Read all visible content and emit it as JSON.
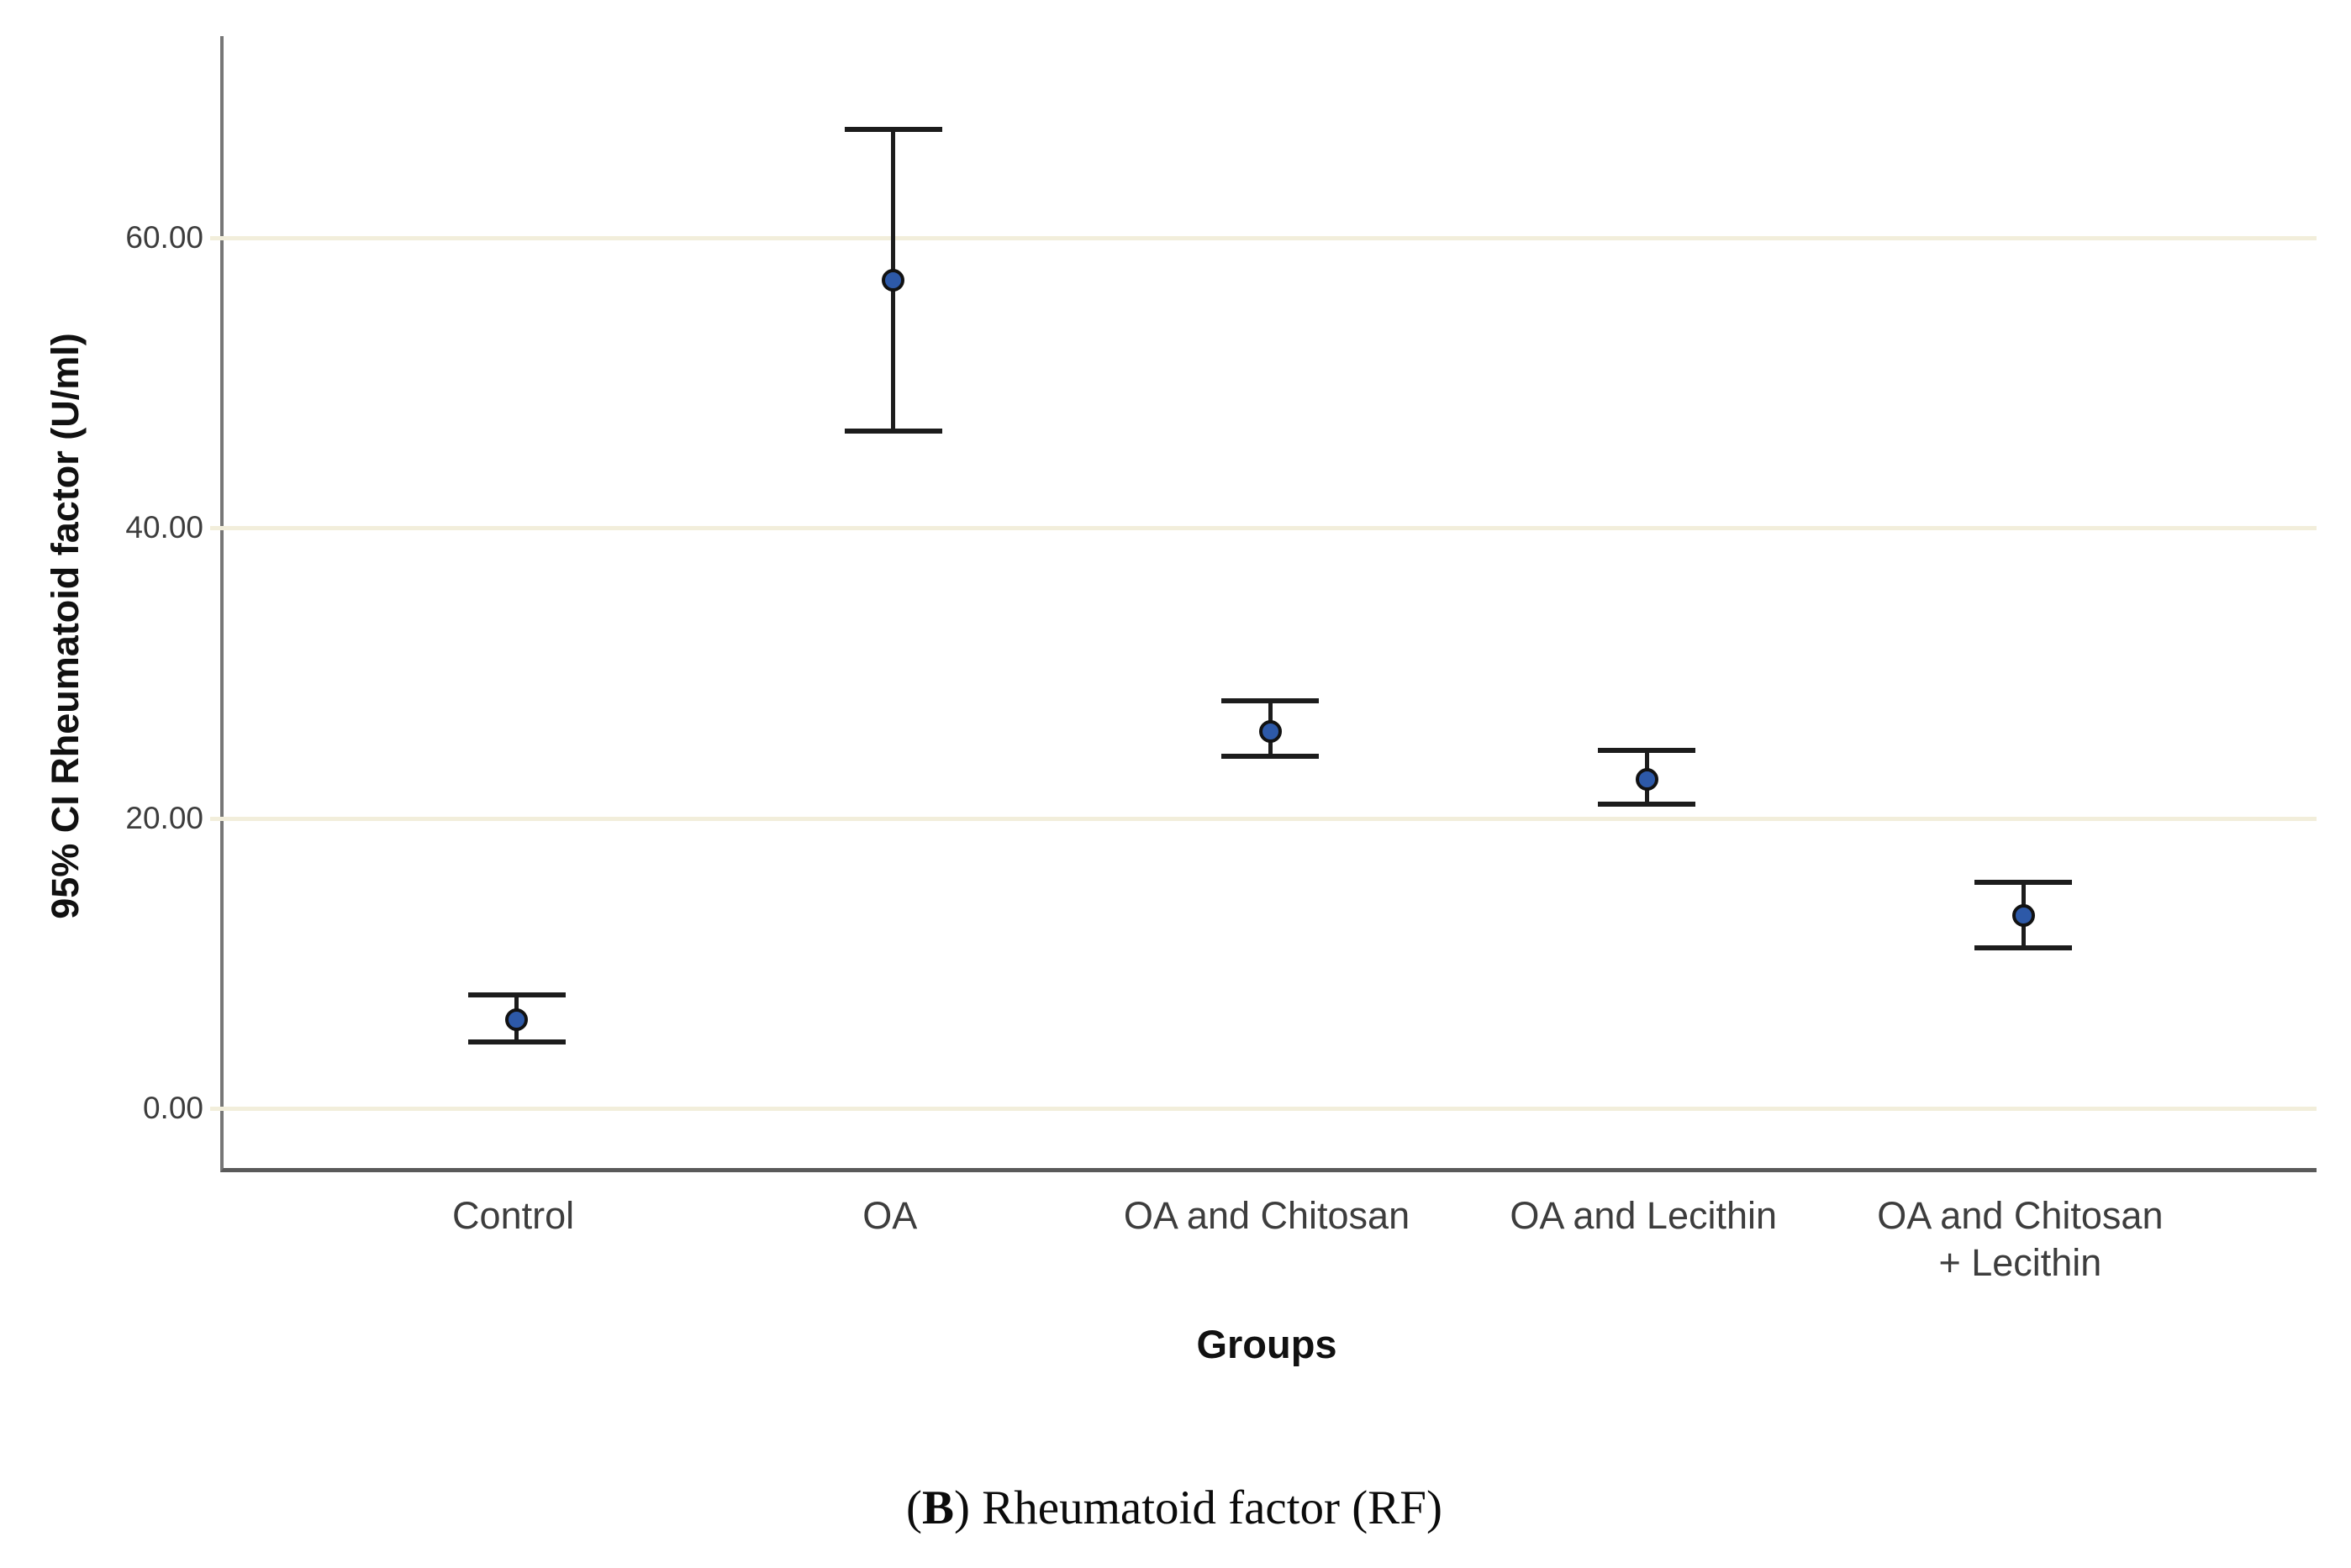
{
  "chart_data": {
    "type": "scatter",
    "subtype": "mean-with-95ci-error-bars",
    "title": "",
    "xlabel": "Groups",
    "ylabel": "95% CI Rheumatoid factor (U/ml)",
    "categories": [
      "Control",
      "OA",
      "OA and Chitosan",
      "OA and Lecithin",
      "OA and Chitosan + Lecithin"
    ],
    "category_label_lines": [
      [
        "Control"
      ],
      [
        "OA"
      ],
      [
        "OA and Chitosan"
      ],
      [
        "OA and Lecithin"
      ],
      [
        "OA and Chitosan",
        "+ Lecithin"
      ]
    ],
    "series": [
      {
        "name": "Rheumatoid factor (RF)",
        "means": [
          6.1,
          57.1,
          26.0,
          22.7,
          13.3
        ],
        "ci_low": [
          4.6,
          46.7,
          24.3,
          21.0,
          11.1
        ],
        "ci_high": [
          7.8,
          67.5,
          28.1,
          24.7,
          15.6
        ]
      }
    ],
    "yticks": [
      {
        "value": 0,
        "label": "0.00"
      },
      {
        "value": 20,
        "label": "20.00"
      },
      {
        "value": 40,
        "label": "40.00"
      },
      {
        "value": 60,
        "label": "60.00"
      }
    ],
    "ylim": [
      -4.1,
      73.9
    ],
    "grid": "horizontal",
    "legend": "none",
    "colors": {
      "marker_fill": "#2d59a8",
      "marker_edge": "#121212",
      "errorbar": "#1c1c1c",
      "gridline": "#f2eedb",
      "tick_text": "#3d3d3d"
    }
  },
  "caption": {
    "open": "(",
    "letter": "B",
    "rest": ") Rheumatoid factor (RF)"
  }
}
